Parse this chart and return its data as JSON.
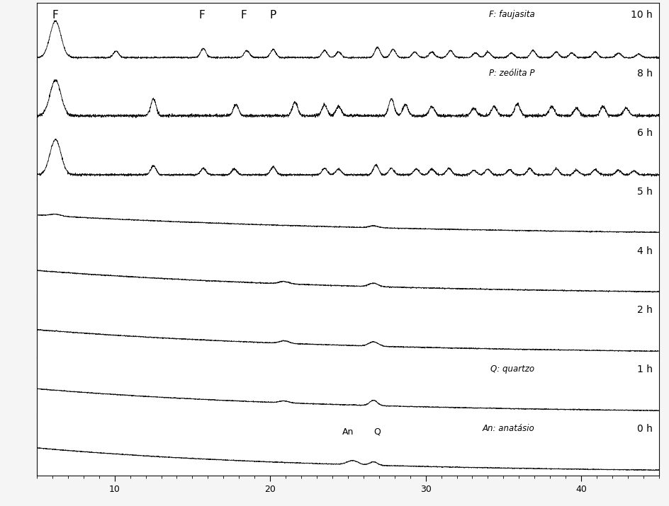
{
  "x_min": 5,
  "x_max": 45,
  "x_ticks": [
    10,
    20,
    30,
    40
  ],
  "background_color": "#f0f0f0",
  "line_color": "#111111",
  "panel_labels": [
    "10 h",
    "8 h",
    "6 h",
    "5 h",
    "4 h",
    "2 h",
    "1 h",
    "0 h"
  ],
  "legend_labels": [
    "F: faujasita",
    "P: zeólita P",
    "",
    "",
    "",
    "",
    "Q: quartzo",
    "An: anatásio"
  ],
  "n_panels": 8,
  "fig_width": 9.44,
  "fig_height": 7.15,
  "dpi": 100
}
